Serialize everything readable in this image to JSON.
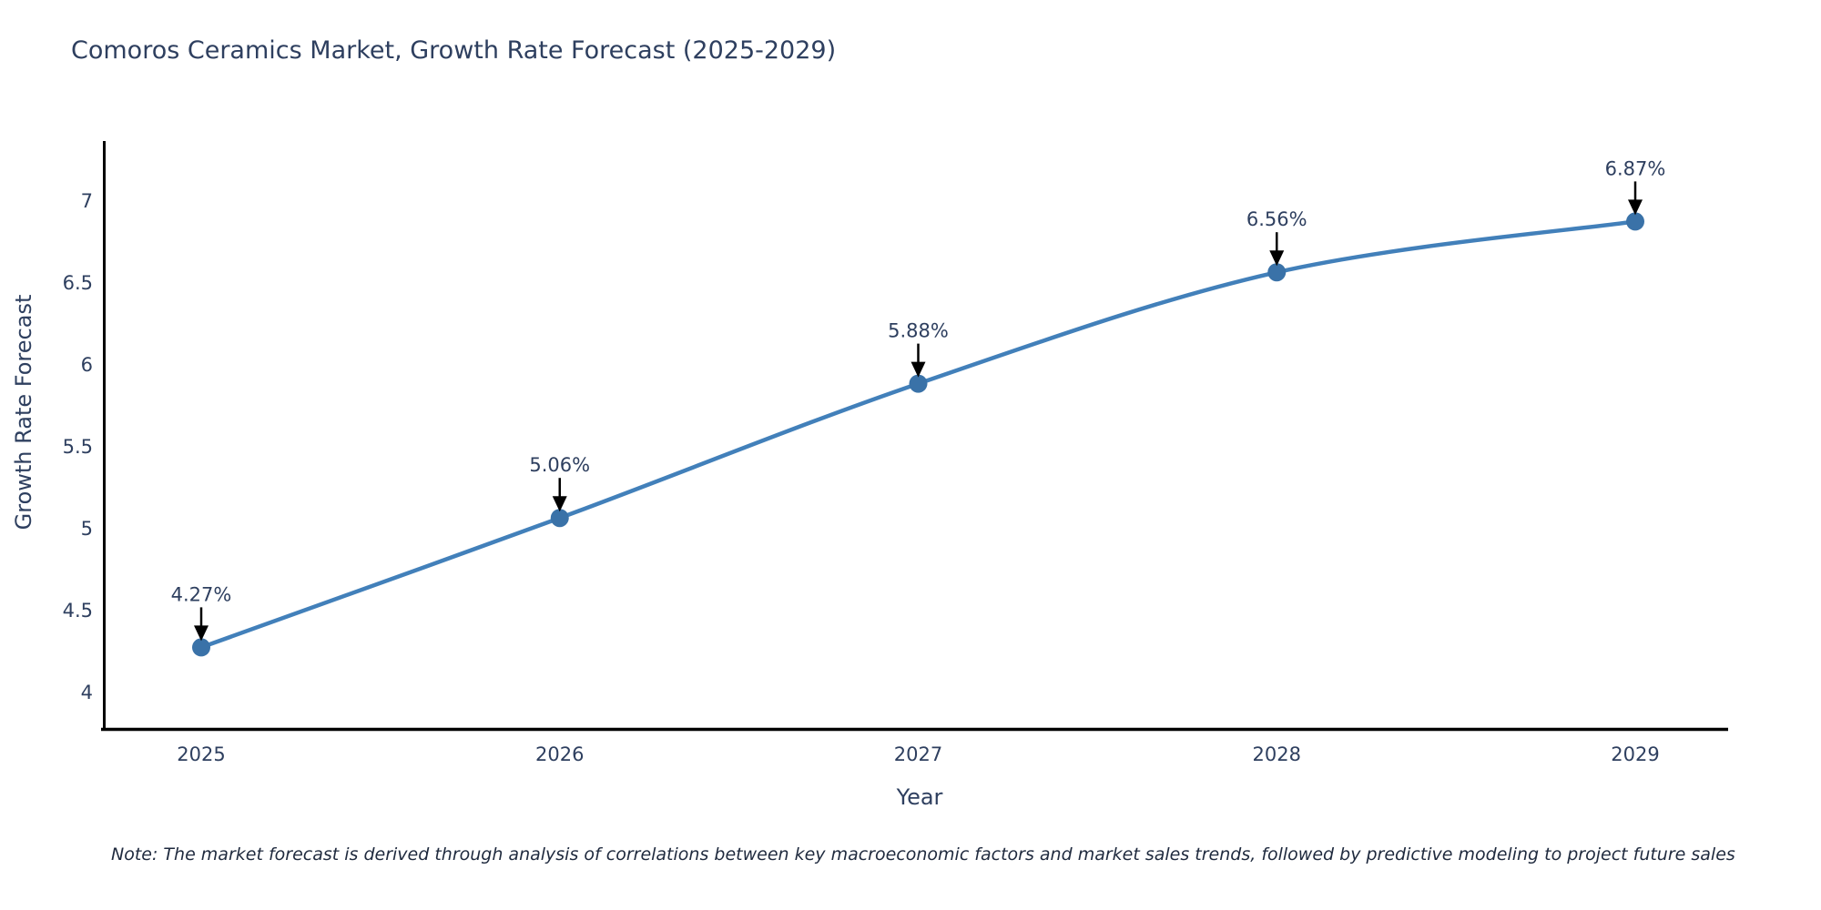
{
  "chart_data": {
    "type": "line",
    "title": "Comoros Ceramics Market, Growth Rate Forecast (2025-2029)",
    "xlabel": "Year",
    "ylabel": "Growth Rate Forecast",
    "x": [
      2025,
      2026,
      2027,
      2028,
      2029
    ],
    "y": [
      4.27,
      5.06,
      5.88,
      6.56,
      6.87
    ],
    "point_labels": [
      "4.27%",
      "5.06%",
      "5.88%",
      "6.56%",
      "6.87%"
    ],
    "x_tick_labels": [
      "2025",
      "2026",
      "2027",
      "2028",
      "2029"
    ],
    "y_ticks": [
      4,
      4.5,
      5,
      5.5,
      6,
      6.5,
      7
    ],
    "y_tick_labels": [
      "4",
      "4.5",
      "5",
      "5.5",
      "6",
      "6.5",
      "7"
    ],
    "xlim": [
      2024.73,
      2029.26
    ],
    "ylim": [
      3.75,
      7.37
    ],
    "line_shape": "spline",
    "grid": false,
    "legend": "none",
    "colors": {
      "line": "#4280BA",
      "marker": "#3A72A8",
      "arrow": "#000000",
      "axis": "#000000",
      "text": "#2E3F5F"
    }
  },
  "note": "Note: The market forecast is derived through analysis of correlations between key macroeconomic factors and market sales trends, followed by predictive modeling to project future sales"
}
